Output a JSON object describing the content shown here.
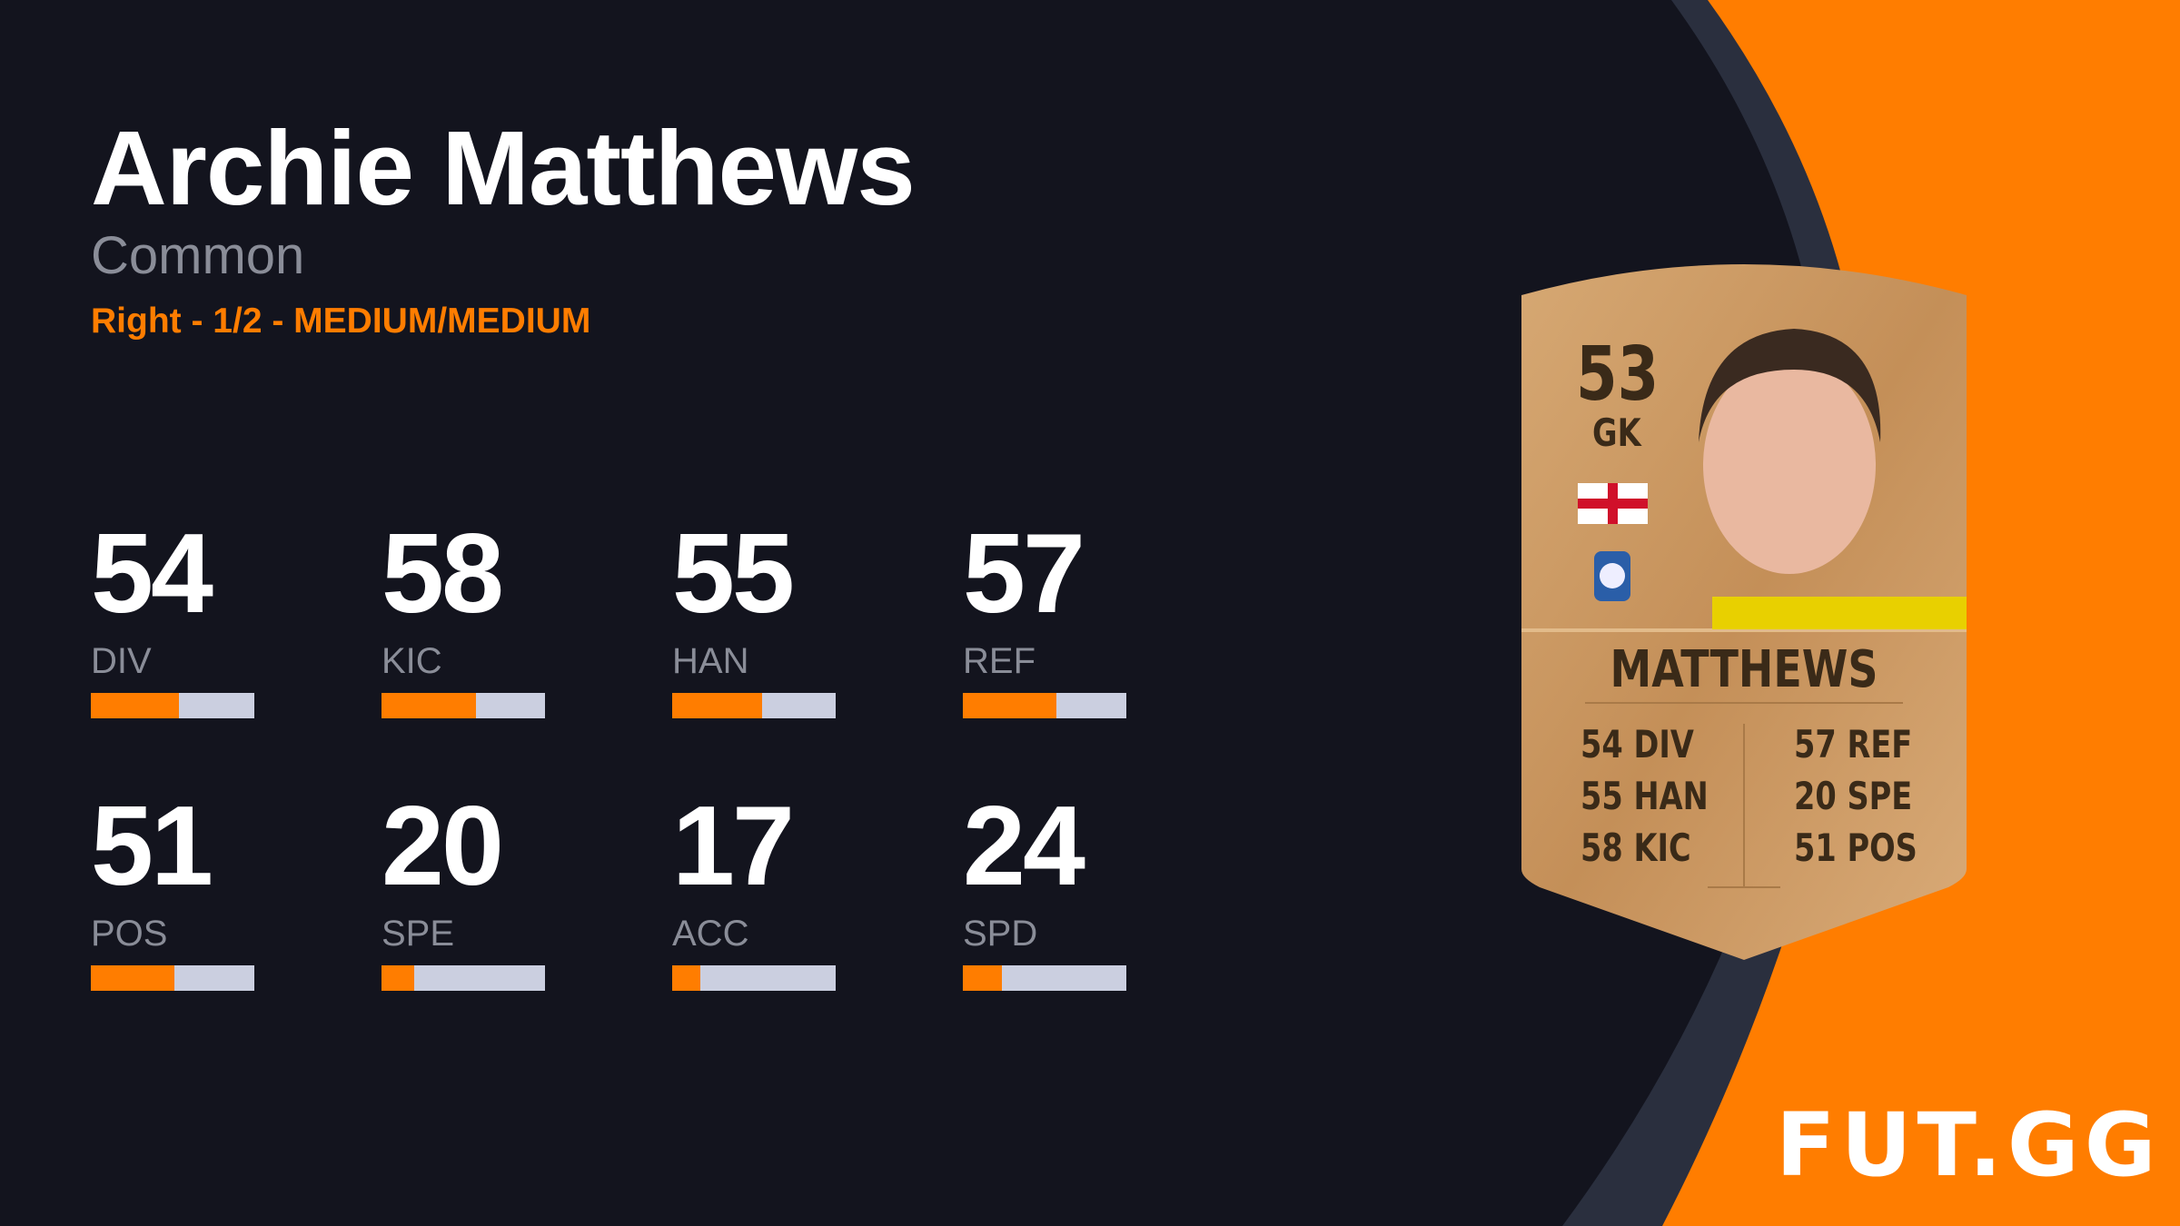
{
  "player": {
    "name": "Archie Matthews",
    "rarity": "Common",
    "meta": "Right - 1/2 - MEDIUM/MEDIUM"
  },
  "stats": [
    {
      "value": "54",
      "label": "DIV",
      "fraction": 0.54
    },
    {
      "value": "58",
      "label": "KIC",
      "fraction": 0.58
    },
    {
      "value": "55",
      "label": "HAN",
      "fraction": 0.55
    },
    {
      "value": "57",
      "label": "REF",
      "fraction": 0.57
    },
    {
      "value": "51",
      "label": "POS",
      "fraction": 0.51
    },
    {
      "value": "20",
      "label": "SPE",
      "fraction": 0.2
    },
    {
      "value": "17",
      "label": "ACC",
      "fraction": 0.17
    },
    {
      "value": "24",
      "label": "SPD",
      "fraction": 0.24
    }
  ],
  "card": {
    "rating": "53",
    "position": "GK",
    "name": "MATTHEWS",
    "nation_flag": "england-flag",
    "club_badge": "club-crest",
    "left_col": [
      "54 DIV",
      "55 HAN",
      "58 KIC"
    ],
    "right_col": [
      "57 REF",
      "20 SPE",
      "51 POS"
    ]
  },
  "brand": {
    "logo": "FUT.GG"
  },
  "colors": {
    "accent": "#ff7d00",
    "background": "#13141e",
    "bar_track": "#cbcfe0",
    "card_gold": "#c9955e"
  }
}
